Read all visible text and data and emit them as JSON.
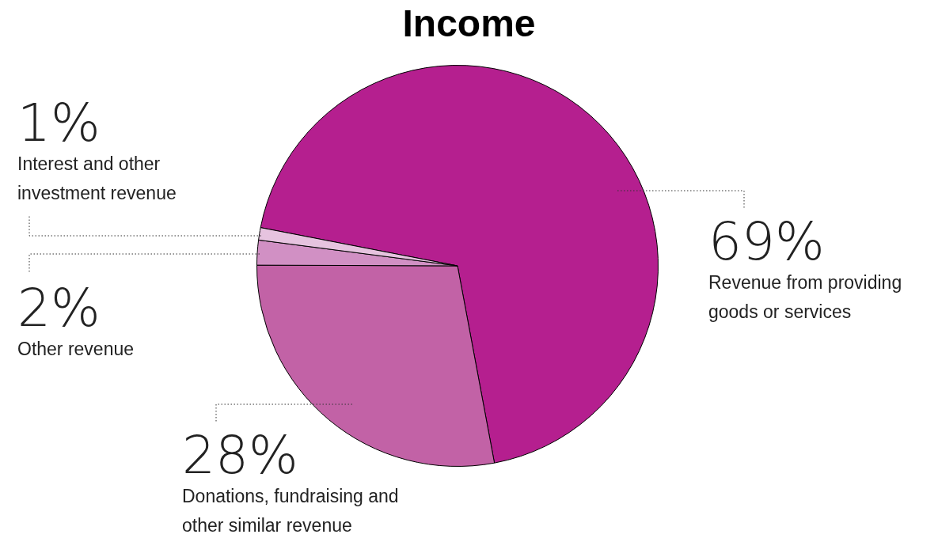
{
  "chart_data": {
    "type": "pie",
    "title": "Income",
    "categories": [
      "Revenue from providing goods or services",
      "Donations, fundraising and other similar revenue",
      "Other revenue",
      "Interest and other investment revenue"
    ],
    "values": [
      69,
      28,
      2,
      1
    ],
    "value_labels": [
      "69%",
      "28%",
      "2%",
      "1%"
    ],
    "colors": [
      "#b51f8f",
      "#c262a6",
      "#d190c4",
      "#e6c3df"
    ],
    "legend": false
  }
}
